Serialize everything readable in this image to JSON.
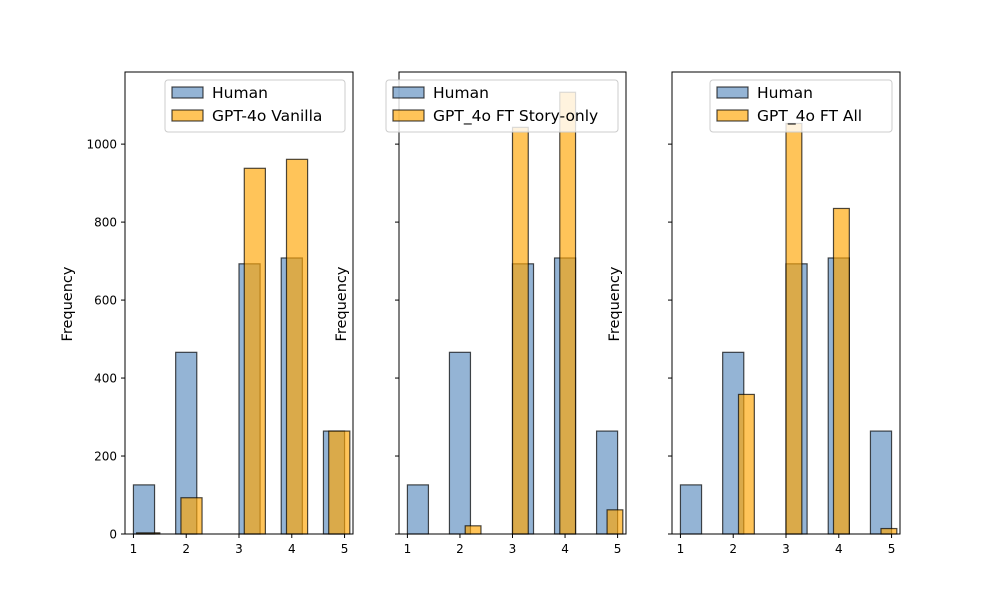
{
  "chart_data": [
    {
      "type": "bar",
      "title": "",
      "xlabel": "",
      "ylabel": "Frequency",
      "x_ticks": [
        1,
        2,
        3,
        4,
        5
      ],
      "y_ticks": [
        0,
        200,
        400,
        600,
        800,
        1000
      ],
      "xlim": [
        0.84,
        5.16
      ],
      "ylim": [
        0,
        1185
      ],
      "legend_position": "upper-right",
      "series": [
        {
          "name": "Human",
          "color": "#5b8cbe",
          "bars": [
            {
              "x0": 1.0,
              "x1": 1.4,
              "value": 126
            },
            {
              "x0": 1.8,
              "x1": 2.2,
              "value": 466
            },
            {
              "x0": 3.0,
              "x1": 3.4,
              "value": 693
            },
            {
              "x0": 3.8,
              "x1": 4.2,
              "value": 708
            },
            {
              "x0": 4.6,
              "x1": 5.0,
              "value": 264
            }
          ]
        },
        {
          "name": "GPT-4o Vanilla",
          "color": "#ffa500",
          "bars": [
            {
              "x0": 1.06,
              "x1": 1.5,
              "value": 3
            },
            {
              "x0": 1.9,
              "x1": 2.3,
              "value": 93
            },
            {
              "x0": 3.1,
              "x1": 3.5,
              "value": 938
            },
            {
              "x0": 3.9,
              "x1": 4.3,
              "value": 961
            },
            {
              "x0": 4.7,
              "x1": 5.1,
              "value": 264
            }
          ]
        }
      ]
    },
    {
      "type": "bar",
      "title": "",
      "xlabel": "",
      "ylabel": "Frequency",
      "x_ticks": [
        1,
        2,
        3,
        4,
        5
      ],
      "y_ticks": [
        0,
        200,
        400,
        600,
        800,
        1000
      ],
      "xlim": [
        0.84,
        5.16
      ],
      "ylim": [
        0,
        1185
      ],
      "legend_position": "upper-right",
      "series": [
        {
          "name": "Human",
          "color": "#5b8cbe",
          "bars": [
            {
              "x0": 1.0,
              "x1": 1.4,
              "value": 126
            },
            {
              "x0": 1.8,
              "x1": 2.2,
              "value": 466
            },
            {
              "x0": 3.0,
              "x1": 3.4,
              "value": 693
            },
            {
              "x0": 3.8,
              "x1": 4.2,
              "value": 708
            },
            {
              "x0": 4.6,
              "x1": 5.0,
              "value": 264
            }
          ]
        },
        {
          "name": "GPT_4o FT Story-only",
          "color": "#ffa500",
          "bars": [
            {
              "x0": 2.1,
              "x1": 2.4,
              "value": 21
            },
            {
              "x0": 3.0,
              "x1": 3.3,
              "value": 1043
            },
            {
              "x0": 3.9,
              "x1": 4.2,
              "value": 1133
            },
            {
              "x0": 4.8,
              "x1": 5.1,
              "value": 62
            }
          ]
        }
      ]
    },
    {
      "type": "bar",
      "title": "",
      "xlabel": "",
      "ylabel": "Frequency",
      "x_ticks": [
        1,
        2,
        3,
        4,
        5
      ],
      "y_ticks": [
        0,
        200,
        400,
        600,
        800,
        1000
      ],
      "xlim": [
        0.84,
        5.16
      ],
      "ylim": [
        0,
        1185
      ],
      "legend_position": "upper-right",
      "series": [
        {
          "name": "Human",
          "color": "#5b8cbe",
          "bars": [
            {
              "x0": 1.0,
              "x1": 1.4,
              "value": 126
            },
            {
              "x0": 1.8,
              "x1": 2.2,
              "value": 466
            },
            {
              "x0": 3.0,
              "x1": 3.4,
              "value": 693
            },
            {
              "x0": 3.8,
              "x1": 4.2,
              "value": 708
            },
            {
              "x0": 4.6,
              "x1": 5.0,
              "value": 264
            }
          ]
        },
        {
          "name": "GPT_4o FT All",
          "color": "#ffa500",
          "bars": [
            {
              "x0": 2.1,
              "x1": 2.4,
              "value": 358
            },
            {
              "x0": 3.0,
              "x1": 3.3,
              "value": 1053
            },
            {
              "x0": 3.9,
              "x1": 4.2,
              "value": 835
            },
            {
              "x0": 4.8,
              "x1": 5.1,
              "value": 14
            }
          ]
        }
      ]
    }
  ]
}
